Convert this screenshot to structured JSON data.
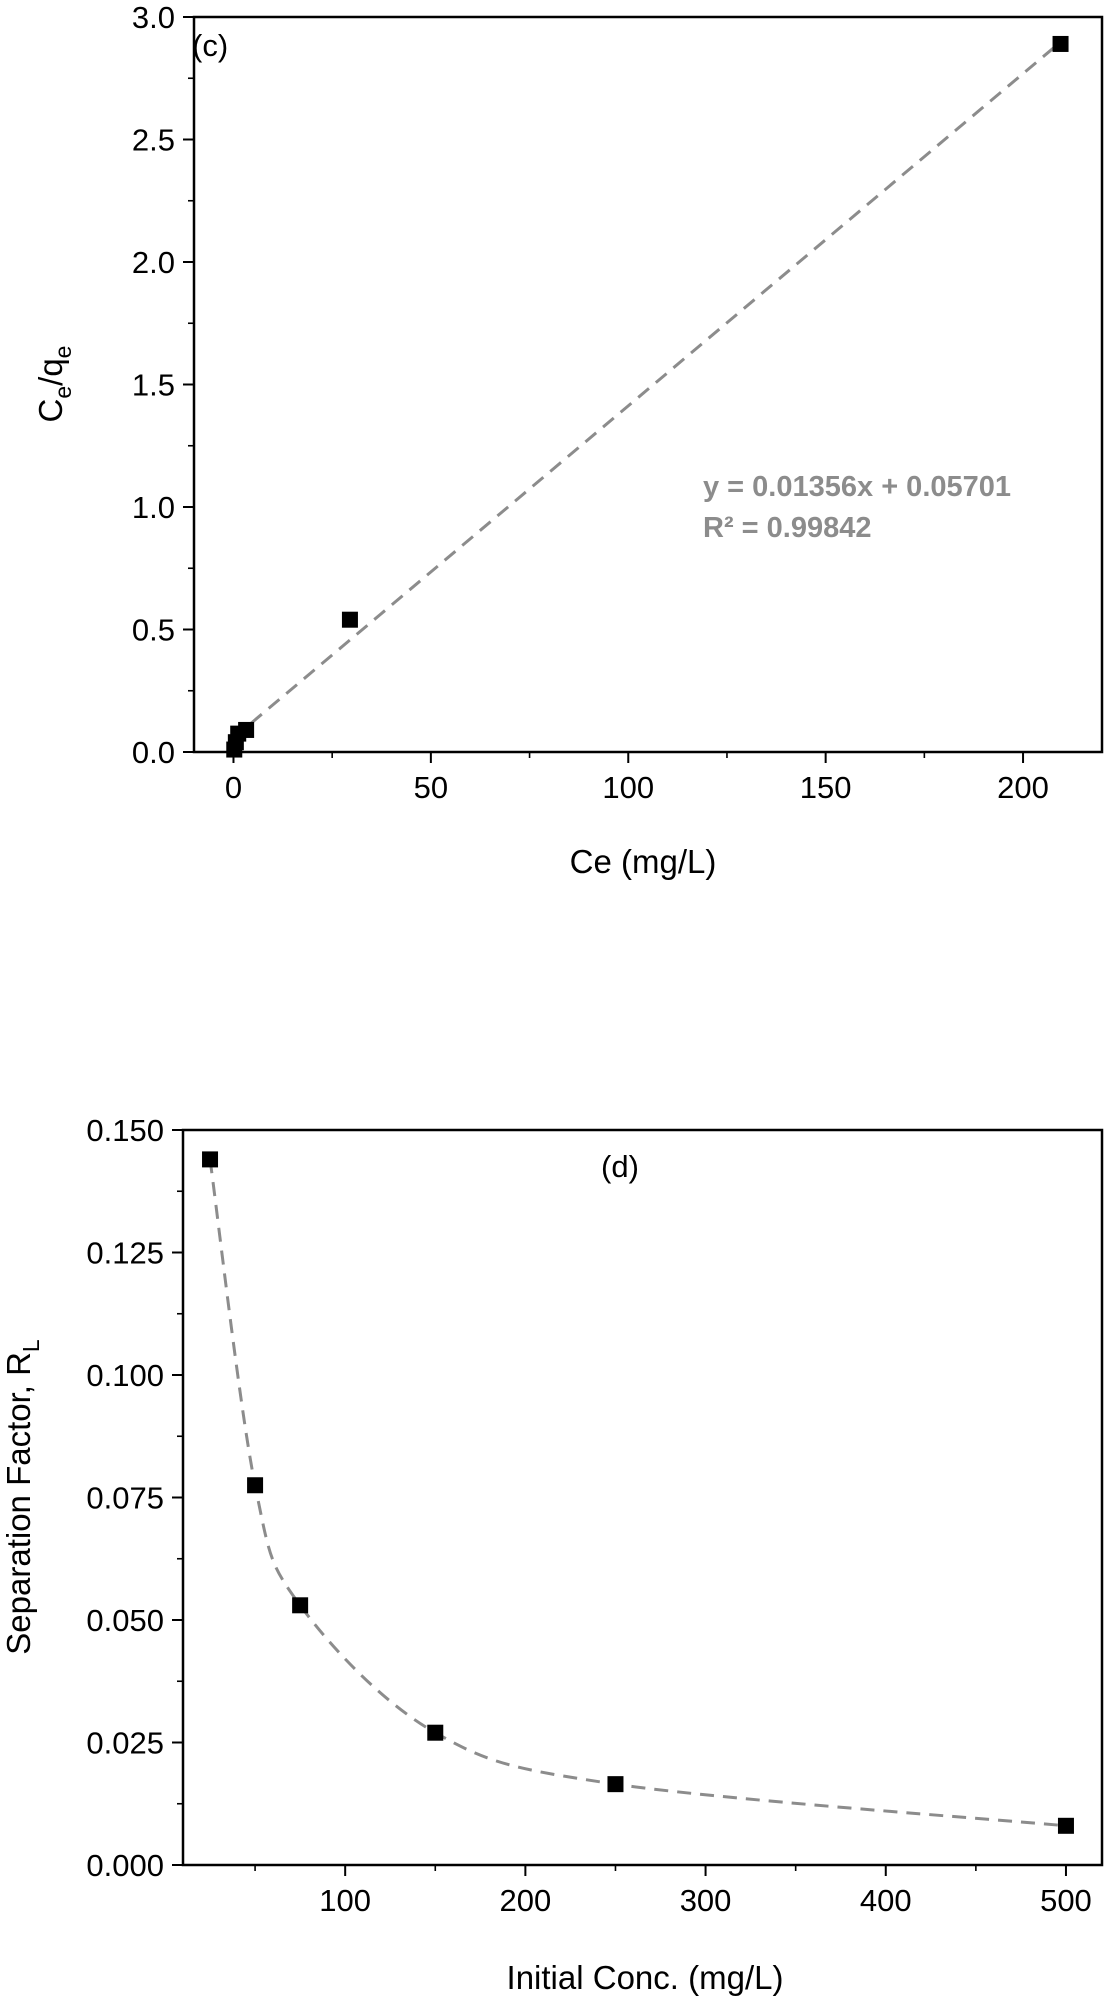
{
  "chart_data": [
    {
      "type": "scatter",
      "panel_label": "(c)",
      "xlabel": "Ce (mg/L)",
      "ylabel": {
        "main": "C",
        "sub1": "e",
        "mid": "/q",
        "sub2": "e"
      },
      "xlim": [
        -10,
        220
      ],
      "ylim": [
        0,
        3.0
      ],
      "xticks": [
        0,
        50,
        100,
        150,
        200
      ],
      "yticks": [
        0.0,
        0.5,
        1.0,
        1.5,
        2.0,
        2.5,
        3.0
      ],
      "xtick_labels": [
        "0",
        "50",
        "100",
        "150",
        "200"
      ],
      "ytick_labels": [
        "0.0",
        "0.5",
        "1.0",
        "1.5",
        "2.0",
        "2.5",
        "3.0"
      ],
      "series": [
        {
          "x": [
            0.2,
            0.6,
            1.2,
            3.2,
            29.5,
            209.5
          ],
          "y": [
            0.01,
            0.04,
            0.075,
            0.09,
            0.54,
            2.89
          ]
        }
      ],
      "fit": {
        "slope": 0.01356,
        "intercept": 0.05701,
        "x_range": [
          0,
          210
        ],
        "equation": "y = 0.01356x + 0.05701",
        "r2": "R² = 0.99842"
      },
      "grid": false,
      "colors": {
        "marker": "#000000",
        "fit_line": "#8c8c8c",
        "annotation": "#8c8c8c"
      }
    },
    {
      "type": "line",
      "panel_label": "(d)",
      "xlabel": "Initial Conc. (mg/L)",
      "ylabel": {
        "main": "Separation Factor, R",
        "sub": "L"
      },
      "xlim": [
        10,
        520
      ],
      "ylim": [
        0,
        0.15
      ],
      "xticks": [
        100,
        200,
        300,
        400,
        500
      ],
      "yticks": [
        0.0,
        0.025,
        0.05,
        0.075,
        0.1,
        0.125,
        0.15
      ],
      "xtick_labels": [
        "100",
        "200",
        "300",
        "400",
        "500"
      ],
      "ytick_labels": [
        "0.000",
        "0.025",
        "0.050",
        "0.075",
        "0.100",
        "0.125",
        "0.150"
      ],
      "series": [
        {
          "x": [
            25,
            50,
            75,
            150,
            250,
            500
          ],
          "y": [
            0.144,
            0.0775,
            0.053,
            0.027,
            0.0165,
            0.008
          ]
        }
      ],
      "grid": false,
      "colors": {
        "marker": "#000000",
        "line": "#8c8c8c"
      }
    }
  ]
}
